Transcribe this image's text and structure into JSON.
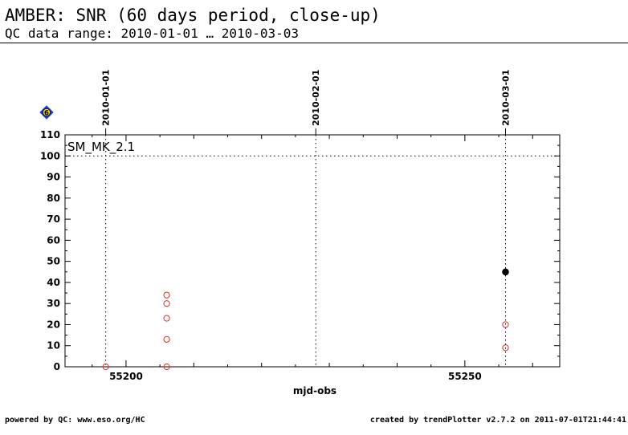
{
  "header": {
    "title": "AMBER: SNR (60 days period, close-up)",
    "subtitle": "QC data range: 2010-01-01 … 2010-03-03"
  },
  "footer": {
    "left": "powered by QC: www.eso.org/HC",
    "right": "created by trendPlotter v2.7.2 on 2011-07-01T21:44:41"
  },
  "chart_data": {
    "type": "scatter",
    "title": "AMBER: SNR (60 days period, close-up)",
    "xlabel": "mjd-obs",
    "ylabel": "",
    "xlim": [
      55191,
      55264
    ],
    "ylim": [
      0,
      110
    ],
    "x_ticks": [
      55200,
      55250
    ],
    "y_ticks": [
      0,
      10,
      20,
      30,
      40,
      50,
      60,
      70,
      80,
      90,
      100,
      110
    ],
    "panel_label": "SM_MK_2.1",
    "marker_badge": "6",
    "reference_line": 100,
    "date_markers": [
      {
        "label": "2010-01-01",
        "x": 55197
      },
      {
        "label": "2010-02-01",
        "x": 55228
      },
      {
        "label": "2010-03-01",
        "x": 55256
      }
    ],
    "series": [
      {
        "marker": "open-circle",
        "color": "#e8282a",
        "points": [
          [
            55197,
            0
          ],
          [
            55206,
            34
          ],
          [
            55206,
            30
          ],
          [
            55206,
            23
          ],
          [
            55206,
            13
          ],
          [
            55206,
            0
          ],
          [
            55256,
            20
          ],
          [
            55256,
            9
          ]
        ]
      },
      {
        "marker": "filled-circle",
        "color": "#000000",
        "points": [
          [
            55256,
            45
          ]
        ]
      }
    ],
    "grid": false,
    "legend": "none"
  }
}
